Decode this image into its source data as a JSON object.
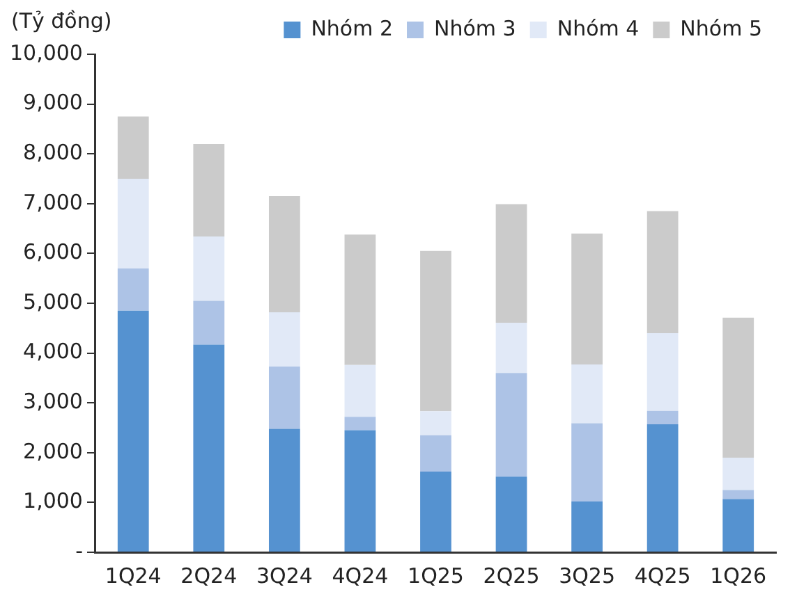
{
  "chart_data": {
    "type": "bar",
    "stacked": true,
    "ylabel": "(Tỷ đồng)",
    "categories": [
      "1Q24",
      "2Q24",
      "3Q24",
      "4Q24",
      "1Q25",
      "2Q25",
      "3Q25",
      "4Q25",
      "1Q26"
    ],
    "series": [
      {
        "name": "Nhóm 2",
        "color": "#5592d0",
        "values": [
          4850,
          4170,
          2480,
          2450,
          1620,
          1520,
          1020,
          2570,
          1070
        ]
      },
      {
        "name": "Nhóm 3",
        "color": "#adc3e6",
        "values": [
          850,
          880,
          1250,
          270,
          730,
          2080,
          1570,
          270,
          180
        ]
      },
      {
        "name": "Nhóm 4",
        "color": "#e1e9f7",
        "values": [
          1800,
          1290,
          1090,
          1040,
          480,
          1010,
          1180,
          1560,
          650
        ]
      },
      {
        "name": "Nhóm 5",
        "color": "#cbcbcb",
        "values": [
          1250,
          1860,
          2330,
          2620,
          3220,
          2380,
          2630,
          2450,
          2810
        ]
      }
    ],
    "ylim": [
      0,
      10000
    ],
    "yticks": [
      {
        "value": 0,
        "label": "-"
      },
      {
        "value": 1000,
        "label": "1,000"
      },
      {
        "value": 2000,
        "label": "2,000"
      },
      {
        "value": 3000,
        "label": "3,000"
      },
      {
        "value": 4000,
        "label": "4,000"
      },
      {
        "value": 5000,
        "label": "5,000"
      },
      {
        "value": 6000,
        "label": "6,000"
      },
      {
        "value": 7000,
        "label": "7,000"
      },
      {
        "value": 8000,
        "label": "8,000"
      },
      {
        "value": 9000,
        "label": "9,000"
      },
      {
        "value": 10000,
        "label": "10,000"
      }
    ],
    "legend": "top",
    "grid": false
  }
}
